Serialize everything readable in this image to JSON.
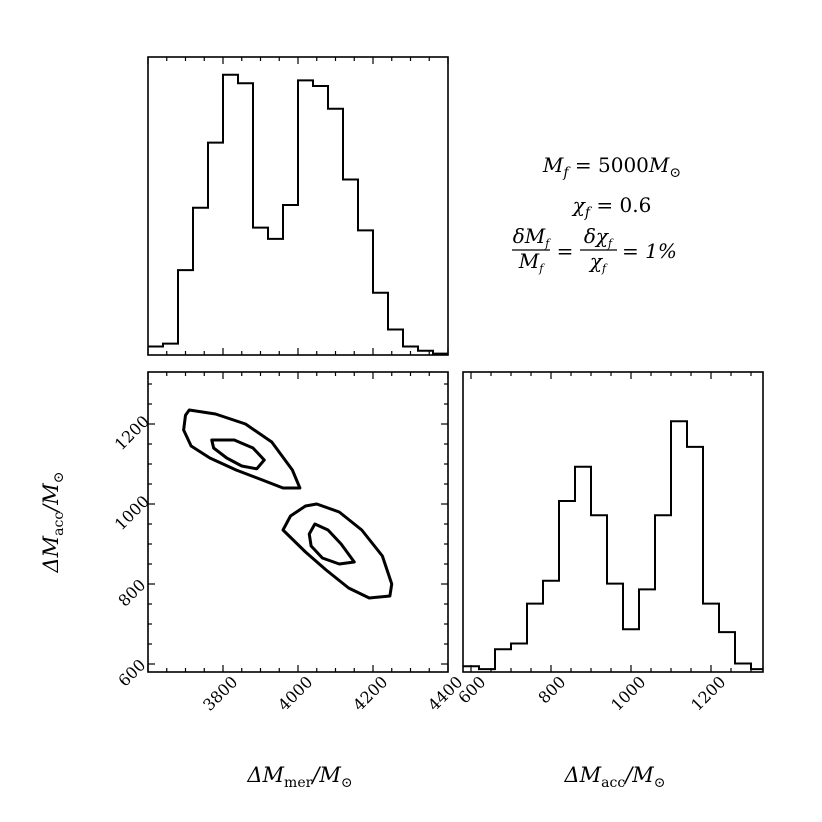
{
  "chart_data": [
    {
      "type": "histogram",
      "panel": "top-left",
      "variable": "ΔM_mer / M_⊙",
      "xlim": [
        3600,
        4400
      ],
      "bins": [
        3600,
        3640,
        3680,
        3720,
        3760,
        3800,
        3840,
        3880,
        3920,
        3960,
        4000,
        4040,
        4080,
        4120,
        4160,
        4200,
        4240,
        4280,
        4320,
        4360,
        4400
      ],
      "heights": [
        0.03,
        0.04,
        0.3,
        0.52,
        0.75,
        0.99,
        0.96,
        0.45,
        0.41,
        0.53,
        0.97,
        0.95,
        0.87,
        0.62,
        0.44,
        0.22,
        0.09,
        0.03,
        0.015,
        0.005
      ],
      "ylabel": ""
    },
    {
      "type": "contour",
      "panel": "bottom-left",
      "xlim": [
        3600,
        4400
      ],
      "ylim": [
        580,
        1330
      ],
      "x_ticks": [
        "3800",
        "4000",
        "4200",
        "4400"
      ],
      "y_ticks": [
        "600",
        "800",
        "1000",
        "1200"
      ],
      "xlabel_base": "ΔM",
      "xlabel_sub": "mer",
      "xlabel_tail": "/M",
      "ylabel_base": "ΔM",
      "ylabel_sub": "acc",
      "ylabel_tail": "/M",
      "contours": [
        {
          "level": "outer",
          "points": [
            [
              3710,
              1235
            ],
            [
              3780,
              1225
            ],
            [
              3860,
              1200
            ],
            [
              3930,
              1155
            ],
            [
              3985,
              1085
            ],
            [
              4005,
              1040
            ],
            [
              3960,
              1040
            ],
            [
              3905,
              1060
            ],
            [
              3835,
              1085
            ],
            [
              3765,
              1115
            ],
            [
              3715,
              1145
            ],
            [
              3695,
              1185
            ],
            [
              3700,
              1222
            ],
            [
              3710,
              1235
            ]
          ]
        },
        {
          "level": "inner",
          "points": [
            [
              3770,
              1160
            ],
            [
              3830,
              1160
            ],
            [
              3880,
              1140
            ],
            [
              3910,
              1110
            ],
            [
              3890,
              1088
            ],
            [
              3850,
              1095
            ],
            [
              3810,
              1115
            ],
            [
              3775,
              1140
            ],
            [
              3770,
              1160
            ]
          ]
        },
        {
          "level": "outer",
          "points": [
            [
              4050,
              1000
            ],
            [
              4110,
              980
            ],
            [
              4170,
              935
            ],
            [
              4225,
              870
            ],
            [
              4250,
              800
            ],
            [
              4245,
              770
            ],
            [
              4190,
              765
            ],
            [
              4135,
              790
            ],
            [
              4075,
              835
            ],
            [
              4020,
              880
            ],
            [
              3960,
              935
            ],
            [
              3980,
              970
            ],
            [
              4020,
              995
            ],
            [
              4050,
              1000
            ]
          ]
        },
        {
          "level": "inner",
          "points": [
            [
              4045,
              950
            ],
            [
              4080,
              935
            ],
            [
              4115,
              900
            ],
            [
              4150,
              855
            ],
            [
              4110,
              850
            ],
            [
              4065,
              865
            ],
            [
              4035,
              895
            ],
            [
              4030,
              925
            ],
            [
              4045,
              950
            ]
          ]
        }
      ]
    },
    {
      "type": "histogram",
      "panel": "bottom-right",
      "variable": "ΔM_acc / M_⊙",
      "xlim": [
        580,
        1330
      ],
      "x_ticks": [
        "600",
        "800",
        "1000",
        "1200"
      ],
      "bins": [
        580,
        620,
        660,
        700,
        740,
        780,
        820,
        860,
        900,
        940,
        980,
        1020,
        1060,
        1100,
        1140,
        1180,
        1220,
        1260,
        1300,
        1330
      ],
      "heights": [
        0.02,
        0.01,
        0.08,
        0.1,
        0.24,
        0.32,
        0.6,
        0.72,
        0.55,
        0.31,
        0.15,
        0.29,
        0.55,
        0.88,
        0.79,
        0.24,
        0.14,
        0.03,
        0.01
      ],
      "xlabel_base": "ΔM",
      "xlabel_sub": "acc",
      "xlabel_tail": "/M"
    }
  ],
  "annotation": {
    "line1_lhs": "M",
    "line1_sub": "f",
    "line1_eq": " = 5000",
    "line1_unit": "M",
    "line2_lhs": "χ",
    "line2_sub": "f",
    "line2_eq": " = 0.6",
    "line3_tail": " = 1%",
    "frac1_num": "δM",
    "frac1_num_sub": "f",
    "frac1_den": "M",
    "frac1_den_sub": "f",
    "frac2_num": "δχ",
    "frac2_num_sub": "f",
    "frac2_den": "χ",
    "frac2_den_sub": "f"
  },
  "style": {
    "line_color": "#000000",
    "background": "#ffffff"
  }
}
